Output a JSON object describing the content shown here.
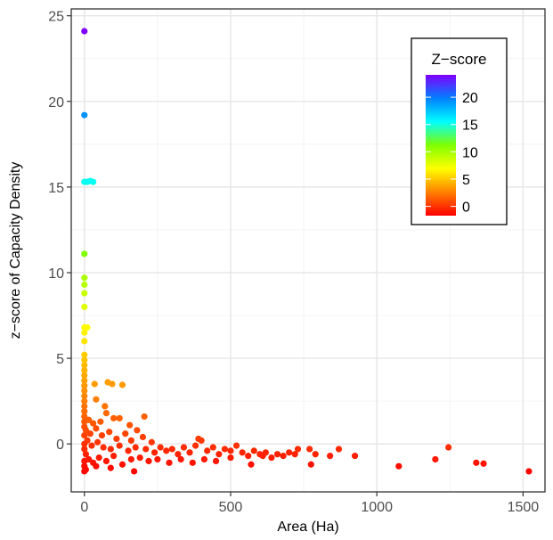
{
  "chart_data": {
    "type": "scatter",
    "title": "",
    "xlabel": "Area (Ha)",
    "ylabel": "z−score of Capacity Density",
    "xlim": [
      -45,
      1575
    ],
    "ylim": [
      -2.8,
      25.4
    ],
    "x_ticks": [
      0,
      500,
      1000,
      1500
    ],
    "x_tick_labels": [
      "0",
      "500",
      "1000",
      "1500"
    ],
    "y_ticks": [
      0,
      5,
      10,
      15,
      20,
      25
    ],
    "y_tick_labels": [
      "0",
      "5",
      "10",
      "15",
      "20",
      "25"
    ],
    "grid": true,
    "legend": {
      "title": "Z−score",
      "position": "top-right",
      "ticks": [
        0,
        5,
        10,
        15,
        20
      ],
      "tick_labels": [
        "0",
        "5",
        "10",
        "15",
        "20"
      ],
      "range": [
        -1.7,
        24.1
      ]
    },
    "colorscale": [
      "#ff0000",
      "#ff8000",
      "#ffff00",
      "#80ff00",
      "#00ffff",
      "#0080ff",
      "#8000ff"
    ],
    "points": [
      {
        "x": 0,
        "y": 24.1
      },
      {
        "x": 0,
        "y": 19.2
      },
      {
        "x": 0,
        "y": 15.3
      },
      {
        "x": 10,
        "y": 15.3
      },
      {
        "x": 20,
        "y": 15.35
      },
      {
        "x": 30,
        "y": 15.3
      },
      {
        "x": 0,
        "y": 11.1
      },
      {
        "x": 0,
        "y": 9.7
      },
      {
        "x": 0,
        "y": 9.3
      },
      {
        "x": 0,
        "y": 8.8
      },
      {
        "x": 0,
        "y": 8.0
      },
      {
        "x": 0,
        "y": 6.8
      },
      {
        "x": 10,
        "y": 6.8
      },
      {
        "x": 0,
        "y": 6.5
      },
      {
        "x": 0,
        "y": 6.0
      },
      {
        "x": 0,
        "y": 5.2
      },
      {
        "x": 0,
        "y": 4.9
      },
      {
        "x": 0,
        "y": 4.6
      },
      {
        "x": 0,
        "y": 4.3
      },
      {
        "x": 0,
        "y": 4.0
      },
      {
        "x": 0,
        "y": 3.7
      },
      {
        "x": 0,
        "y": 3.4
      },
      {
        "x": 0,
        "y": 3.1
      },
      {
        "x": 0,
        "y": 2.8
      },
      {
        "x": 0,
        "y": 2.5
      },
      {
        "x": 0,
        "y": 2.2
      },
      {
        "x": 0,
        "y": 1.9
      },
      {
        "x": 0,
        "y": 1.6
      },
      {
        "x": 0,
        "y": 1.3
      },
      {
        "x": 0,
        "y": 1.0
      },
      {
        "x": 35,
        "y": 3.5
      },
      {
        "x": 80,
        "y": 3.6
      },
      {
        "x": 95,
        "y": 3.5
      },
      {
        "x": 130,
        "y": 3.45
      },
      {
        "x": 40,
        "y": 2.6
      },
      {
        "x": 70,
        "y": 2.2
      },
      {
        "x": 75,
        "y": 1.8
      },
      {
        "x": 100,
        "y": 1.5
      },
      {
        "x": 155,
        "y": 1.1
      },
      {
        "x": 205,
        "y": 1.6
      },
      {
        "x": 120,
        "y": 1.5
      },
      {
        "x": 180,
        "y": 0.8
      },
      {
        "x": 15,
        "y": 1.4
      },
      {
        "x": 30,
        "y": 1.2
      },
      {
        "x": 55,
        "y": 1.3
      },
      {
        "x": 5,
        "y": 0.8
      },
      {
        "x": 20,
        "y": 0.6
      },
      {
        "x": 40,
        "y": 0.9
      },
      {
        "x": 60,
        "y": 0.5
      },
      {
        "x": 85,
        "y": 0.7
      },
      {
        "x": 110,
        "y": 0.3
      },
      {
        "x": 140,
        "y": 0.6
      },
      {
        "x": 160,
        "y": 0.2
      },
      {
        "x": 200,
        "y": 0.4
      },
      {
        "x": 230,
        "y": 0.1
      },
      {
        "x": 10,
        "y": 0.2
      },
      {
        "x": 25,
        "y": -0.1
      },
      {
        "x": 45,
        "y": 0.1
      },
      {
        "x": 65,
        "y": -0.2
      },
      {
        "x": 90,
        "y": -0.3
      },
      {
        "x": 120,
        "y": -0.1
      },
      {
        "x": 150,
        "y": -0.4
      },
      {
        "x": 175,
        "y": -0.2
      },
      {
        "x": 210,
        "y": -0.3
      },
      {
        "x": 240,
        "y": -0.5
      },
      {
        "x": 260,
        "y": -0.2
      },
      {
        "x": 280,
        "y": -0.4
      },
      {
        "x": 300,
        "y": -0.3
      },
      {
        "x": 320,
        "y": -0.6
      },
      {
        "x": 340,
        "y": -0.2
      },
      {
        "x": 360,
        "y": -0.5
      },
      {
        "x": 380,
        "y": -0.1
      },
      {
        "x": 390,
        "y": 0.3
      },
      {
        "x": 400,
        "y": 0.2
      },
      {
        "x": 420,
        "y": -0.4
      },
      {
        "x": 440,
        "y": -0.2
      },
      {
        "x": 460,
        "y": -0.6
      },
      {
        "x": 480,
        "y": -0.3
      },
      {
        "x": 500,
        "y": -0.4
      },
      {
        "x": 520,
        "y": -0.1
      },
      {
        "x": 540,
        "y": -0.5
      },
      {
        "x": 560,
        "y": -0.7
      },
      {
        "x": 580,
        "y": -0.4
      },
      {
        "x": 600,
        "y": -0.6
      },
      {
        "x": 620,
        "y": -0.5
      },
      {
        "x": 640,
        "y": -0.8
      },
      {
        "x": 660,
        "y": -0.6
      },
      {
        "x": 680,
        "y": -0.7
      },
      {
        "x": 700,
        "y": -0.5
      },
      {
        "x": 720,
        "y": -0.6
      },
      {
        "x": 730,
        "y": -0.3
      },
      {
        "x": 5,
        "y": -0.6
      },
      {
        "x": 15,
        "y": -0.9
      },
      {
        "x": 30,
        "y": -1.1
      },
      {
        "x": 50,
        "y": -0.8
      },
      {
        "x": 75,
        "y": -1.0
      },
      {
        "x": 100,
        "y": -0.7
      },
      {
        "x": 130,
        "y": -1.2
      },
      {
        "x": 160,
        "y": -0.9
      },
      {
        "x": 190,
        "y": -0.8
      },
      {
        "x": 220,
        "y": -1.0
      },
      {
        "x": 250,
        "y": -0.9
      },
      {
        "x": 290,
        "y": -1.1
      },
      {
        "x": 330,
        "y": -0.9
      },
      {
        "x": 370,
        "y": -1.1
      },
      {
        "x": 410,
        "y": -0.9
      },
      {
        "x": 450,
        "y": -1.0
      },
      {
        "x": 500,
        "y": -0.8
      },
      {
        "x": 570,
        "y": -1.2
      },
      {
        "x": 610,
        "y": -0.7
      },
      {
        "x": 0,
        "y": -1.6
      },
      {
        "x": 5,
        "y": -1.5
      },
      {
        "x": 40,
        "y": -1.3
      },
      {
        "x": 90,
        "y": -1.4
      },
      {
        "x": 170,
        "y": -1.6
      },
      {
        "x": 0,
        "y": 0.0
      },
      {
        "x": 0,
        "y": -0.3
      },
      {
        "x": 0,
        "y": 0.5
      },
      {
        "x": 0,
        "y": -1.0
      },
      {
        "x": 0,
        "y": -1.3
      },
      {
        "x": 770,
        "y": -0.3
      },
      {
        "x": 790,
        "y": -0.6
      },
      {
        "x": 775,
        "y": -1.2
      },
      {
        "x": 840,
        "y": -0.7
      },
      {
        "x": 870,
        "y": -0.3
      },
      {
        "x": 925,
        "y": -0.7
      },
      {
        "x": 1075,
        "y": -1.3
      },
      {
        "x": 1200,
        "y": -0.9
      },
      {
        "x": 1245,
        "y": -0.2
      },
      {
        "x": 1340,
        "y": -1.1
      },
      {
        "x": 1365,
        "y": -1.15
      },
      {
        "x": 1520,
        "y": -1.6
      }
    ]
  }
}
